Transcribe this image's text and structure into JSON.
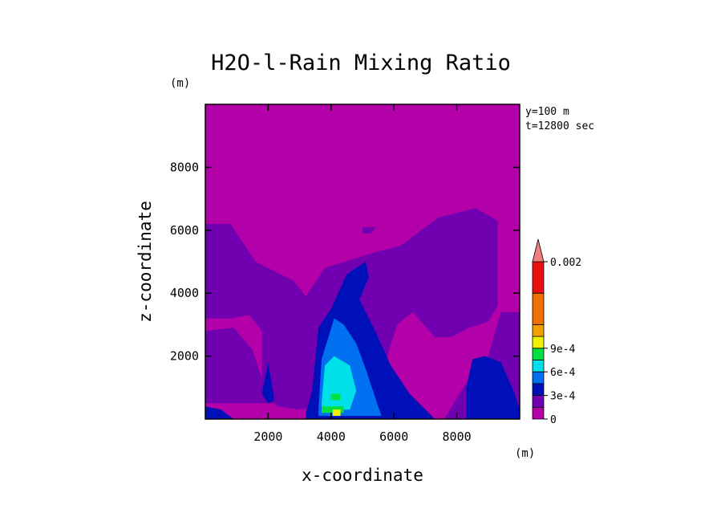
{
  "chart_data": {
    "type": "heatmap",
    "title": "H2O-l-Rain Mixing Ratio",
    "xlabel": "x-coordinate",
    "ylabel": "z-coordinate",
    "x_unit": "(m)",
    "y_unit": "(m)",
    "xlim": [
      0,
      10000
    ],
    "ylim": [
      0,
      10000
    ],
    "x_ticks": [
      2000,
      4000,
      6000,
      8000
    ],
    "y_ticks": [
      2000,
      4000,
      6000,
      8000
    ],
    "annotations": [
      "y=100 m",
      "t=12800 sec"
    ],
    "colorbar": {
      "levels": [
        0,
        0.00015,
        0.0003,
        0.00045,
        0.0006,
        0.00075,
        0.0009,
        0.00105,
        0.0012,
        0.0016,
        0.002
      ],
      "labels": [
        {
          "value": 0,
          "text": "0"
        },
        {
          "value": 0.0003,
          "text": "3e-4"
        },
        {
          "value": 0.0006,
          "text": "6e-4"
        },
        {
          "value": 0.0009,
          "text": "9e-4"
        },
        {
          "value": 0.002,
          "text": "0.002"
        }
      ],
      "colors": [
        "#b400a8",
        "#7000b0",
        "#0010b8",
        "#0070f0",
        "#00e0e8",
        "#00e040",
        "#f0f000",
        "#f0a000",
        "#f07000",
        "#e81010",
        "#f08080"
      ],
      "extend": "max"
    },
    "contours": [
      {
        "level": 0.00015,
        "color": "#7000b0",
        "polygon": [
          [
            0,
            6200
          ],
          [
            800,
            6200
          ],
          [
            1600,
            5000
          ],
          [
            2800,
            4400
          ],
          [
            3200,
            3900
          ],
          [
            3800,
            4800
          ],
          [
            5400,
            5300
          ],
          [
            6200,
            5500
          ],
          [
            7400,
            6400
          ],
          [
            8600,
            6700
          ],
          [
            9300,
            6300
          ],
          [
            9300,
            3600
          ],
          [
            9000,
            3100
          ],
          [
            8400,
            2900
          ],
          [
            7800,
            2600
          ],
          [
            7300,
            2600
          ],
          [
            6600,
            3400
          ],
          [
            6100,
            3000
          ],
          [
            5700,
            1700
          ],
          [
            5000,
            500
          ],
          [
            3000,
            300
          ],
          [
            2300,
            400
          ],
          [
            1800,
            900
          ],
          [
            1800,
            2800
          ],
          [
            1400,
            3300
          ],
          [
            800,
            3200
          ],
          [
            0,
            3200
          ]
        ]
      },
      {
        "level": 0.00015,
        "color": "#7000b0",
        "polygon": [
          [
            9400,
            3400
          ],
          [
            10000,
            3400
          ],
          [
            10000,
            0
          ],
          [
            7600,
            0
          ],
          [
            8200,
            1000
          ],
          [
            9000,
            2000
          ]
        ]
      },
      {
        "level": 0.00015,
        "color": "#7000b0",
        "polygon": [
          [
            5000,
            6100
          ],
          [
            5400,
            6100
          ],
          [
            5300,
            5900
          ],
          [
            5000,
            5900
          ]
        ]
      },
      {
        "level": 0.00015,
        "color": "#7000b0",
        "polygon": [
          [
            0,
            2800
          ],
          [
            900,
            2900
          ],
          [
            1500,
            2200
          ],
          [
            1800,
            1300
          ],
          [
            2200,
            500
          ],
          [
            0,
            500
          ]
        ]
      },
      {
        "level": 0.0003,
        "color": "#0010b8",
        "polygon": [
          [
            3200,
            200
          ],
          [
            3400,
            900
          ],
          [
            3600,
            2900
          ],
          [
            4000,
            3500
          ],
          [
            4500,
            4600
          ],
          [
            5100,
            5000
          ],
          [
            5200,
            4500
          ],
          [
            4900,
            3800
          ],
          [
            5400,
            2800
          ],
          [
            5900,
            1700
          ],
          [
            6500,
            800
          ],
          [
            7300,
            0
          ],
          [
            3200,
            0
          ]
        ]
      },
      {
        "level": 0.0003,
        "color": "#0010b8",
        "polygon": [
          [
            8300,
            0
          ],
          [
            8300,
            1000
          ],
          [
            8500,
            1900
          ],
          [
            8900,
            2000
          ],
          [
            9400,
            1800
          ],
          [
            9800,
            900
          ],
          [
            10000,
            300
          ],
          [
            10000,
            0
          ]
        ]
      },
      {
        "level": 0.0003,
        "color": "#0010b8",
        "polygon": [
          [
            0,
            400
          ],
          [
            500,
            300
          ],
          [
            900,
            0
          ],
          [
            0,
            0
          ]
        ]
      },
      {
        "level": 0.0003,
        "color": "#0010b8",
        "polygon": [
          [
            1800,
            800
          ],
          [
            2000,
            1800
          ],
          [
            2200,
            600
          ],
          [
            2000,
            500
          ]
        ]
      },
      {
        "level": 0.00045,
        "color": "#0070f0",
        "polygon": [
          [
            3600,
            300
          ],
          [
            3700,
            1900
          ],
          [
            4100,
            3200
          ],
          [
            4400,
            3000
          ],
          [
            4800,
            2400
          ],
          [
            5100,
            1600
          ],
          [
            5400,
            700
          ],
          [
            5600,
            100
          ],
          [
            3600,
            100
          ]
        ]
      },
      {
        "level": 0.0006,
        "color": "#00e0e8",
        "polygon": [
          [
            3700,
            500
          ],
          [
            3800,
            1700
          ],
          [
            4100,
            2000
          ],
          [
            4600,
            1700
          ],
          [
            4800,
            900
          ],
          [
            4600,
            300
          ],
          [
            3700,
            300
          ]
        ]
      },
      {
        "level": 0.00075,
        "color": "#00e040",
        "polygon": [
          [
            3700,
            200
          ],
          [
            4400,
            200
          ],
          [
            4400,
            400
          ],
          [
            3700,
            400
          ]
        ]
      },
      {
        "level": 0.00075,
        "color": "#00e040",
        "polygon": [
          [
            4000,
            600
          ],
          [
            4300,
            600
          ],
          [
            4300,
            800
          ],
          [
            4000,
            800
          ]
        ]
      },
      {
        "level": 0.0009,
        "color": "#f0f000",
        "polygon": [
          [
            4050,
            100
          ],
          [
            4300,
            100
          ],
          [
            4300,
            300
          ],
          [
            4050,
            300
          ]
        ]
      }
    ]
  }
}
